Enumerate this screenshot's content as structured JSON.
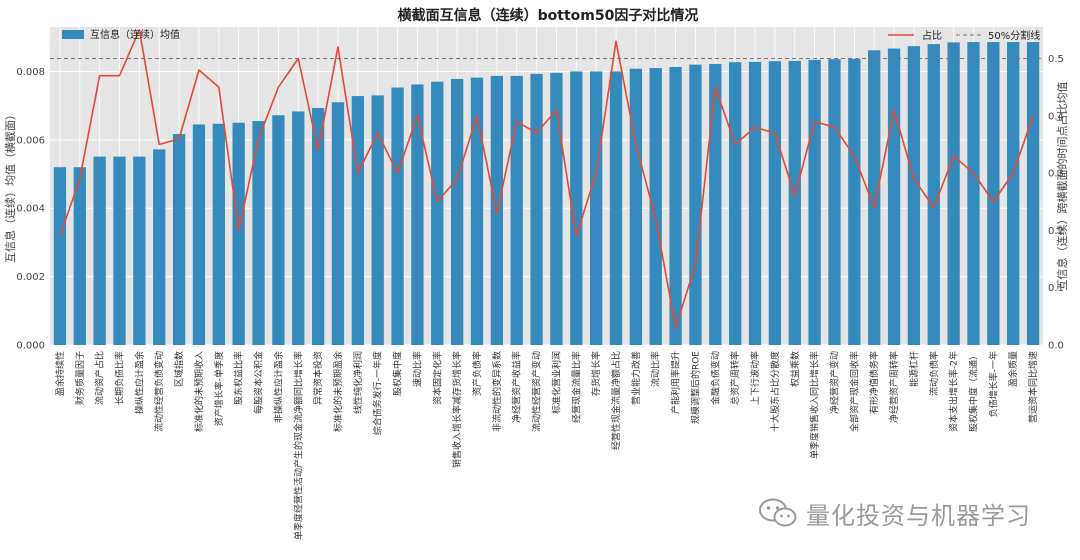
{
  "chart_data": {
    "type": "bar",
    "title": "横截面互信息（连续）bottom50因子对比情况",
    "ylabel_left": "互信息（连续）均值（横截面）",
    "ylabel_right": "互信息（连续）跨横截面的时间点占比均值",
    "ylim_left": [
      0,
      0.0093
    ],
    "ylim_right": [
      0,
      0.555
    ],
    "yticks_left": [
      "0.000",
      "0.002",
      "0.004",
      "0.006",
      "0.008"
    ],
    "yticks_right": [
      "0.0",
      "0.1",
      "0.2",
      "0.3",
      "0.4",
      "0.5"
    ],
    "threshold": 0.5,
    "grid": true,
    "colors": {
      "bar": "#348abd",
      "line": "#e24a33",
      "threshold": "#777777",
      "background": "#e5e5e5"
    },
    "legend": {
      "bar_label": "互信息（连续）均值",
      "line_label": "占比",
      "threshold_label": "50%分割线",
      "bar_position": "top-left",
      "line_position": "top-right"
    },
    "categories": [
      "盈余持续性",
      "财务质量因子",
      "流动资产占比",
      "长期负债比率",
      "操纵性应计盈余",
      "流动性经营负债变动",
      "区域指数",
      "标准化的未预期收入",
      "资产增长率-单季度",
      "股东权益比率",
      "每股资本公积金",
      "非操纵性应计盈余",
      "单季度经营性活动产生的现金流净额同比增长率",
      "异常资本投资",
      "标准化的未预期盈余",
      "线性纯化净利润",
      "综合债务发行-一年度",
      "股权集中度",
      "速动比率",
      "资本固定化率",
      "销售收入增长率减存货增长率",
      "资产负债率",
      "非流动性的变异系数",
      "净经营资产收益率",
      "流动性经营资产变动",
      "标准化营业利润",
      "经营现金流量比率",
      "存货增长率",
      "经营性现金流量净额占比",
      "营业能力改善",
      "流动比率",
      "产能利用率提升",
      "规模调整后的ROE",
      "金融负债变动",
      "总资产周转率",
      "上下行波动率",
      "十大股东占比分散度",
      "权益乘数",
      "单季度销售收入同比增长率",
      "净经营资产变动",
      "全部资产现金回收率",
      "有形净值债务率",
      "净经营资产周转率",
      "能源杠杆",
      "流动负债率",
      "资本支出增长率-2年",
      "股权集中度（流通）",
      "负债增长率-一年",
      "盈余质量",
      "营运资本同比增速"
    ],
    "series": [
      {
        "name": "互信息（连续）均值",
        "axis": "left",
        "values": [
          0.0052,
          0.0052,
          0.00551,
          0.00551,
          0.00551,
          0.00572,
          0.00617,
          0.00645,
          0.00647,
          0.0065,
          0.00655,
          0.00672,
          0.00683,
          0.00693,
          0.0071,
          0.00728,
          0.0073,
          0.00753,
          0.00762,
          0.0077,
          0.00778,
          0.00782,
          0.00787,
          0.00787,
          0.00793,
          0.00796,
          0.008,
          0.008,
          0.008,
          0.00808,
          0.0081,
          0.00813,
          0.0082,
          0.00822,
          0.00827,
          0.00828,
          0.0083,
          0.00831,
          0.00834,
          0.00836,
          0.00837,
          0.00862,
          0.00867,
          0.00874,
          0.0088,
          0.00885,
          0.00886,
          0.00886,
          0.00886,
          0.00886
        ]
      },
      {
        "name": "占比",
        "axis": "right",
        "values": [
          0.19,
          0.29,
          0.47,
          0.47,
          0.55,
          0.35,
          0.36,
          0.48,
          0.45,
          0.2,
          0.36,
          0.45,
          0.5,
          0.34,
          0.52,
          0.3,
          0.37,
          0.3,
          0.4,
          0.25,
          0.29,
          0.4,
          0.23,
          0.39,
          0.37,
          0.41,
          0.19,
          0.3,
          0.53,
          0.35,
          0.22,
          0.03,
          0.14,
          0.45,
          0.35,
          0.38,
          0.37,
          0.26,
          0.39,
          0.38,
          0.33,
          0.24,
          0.41,
          0.29,
          0.24,
          0.33,
          0.3,
          0.25,
          0.3,
          0.4
        ]
      }
    ]
  },
  "watermark": {
    "icon": "wechat-icon",
    "text": "量化投资与机器学习"
  }
}
